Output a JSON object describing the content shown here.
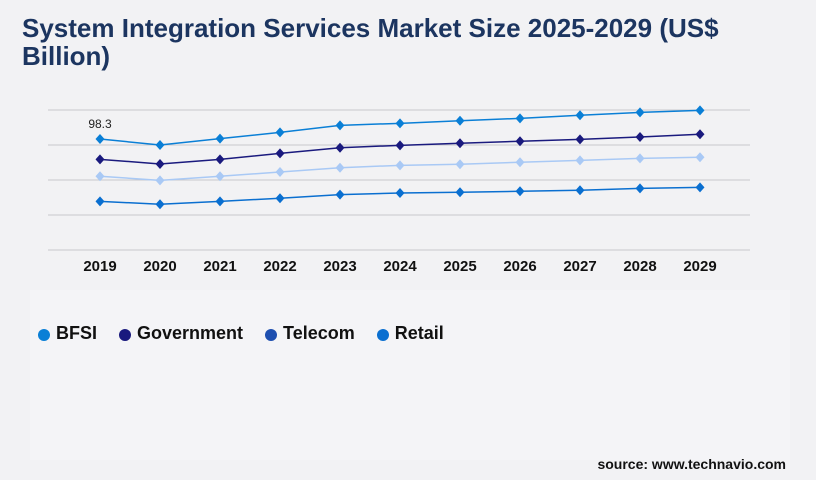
{
  "chart_data": {
    "type": "line",
    "title": "System Integration Services Market Size 2025-2029 (US$ Billion)",
    "categories": [
      "2019",
      "2020",
      "2021",
      "2022",
      "2023",
      "2024",
      "2025",
      "2026",
      "2027",
      "2028",
      "2029"
    ],
    "series": [
      {
        "name": "BFSI",
        "color": "#0a7fd6",
        "legend_color": "#0a7fd6",
        "values": [
          98.3,
          93.0,
          98.6,
          104.2,
          110.4,
          112.2,
          114.5,
          116.6,
          119.3,
          121.9,
          123.7
        ]
      },
      {
        "name": "Government",
        "color": "#1a1a7e",
        "legend_color": "#1a1a7e",
        "values": [
          80.3,
          76.2,
          80.3,
          85.6,
          90.6,
          92.7,
          94.5,
          96.3,
          98.0,
          100.1,
          102.5
        ]
      },
      {
        "name": "Telecom",
        "color": "#a9c9f5",
        "legend_color": "#1e4fb0",
        "values": [
          65.3,
          61.7,
          65.3,
          69.1,
          72.9,
          75.0,
          75.9,
          77.7,
          79.4,
          81.2,
          82.1
        ]
      },
      {
        "name": "Retail",
        "color": "#0a6fd0",
        "legend_color": "#0a6fd0",
        "values": [
          43.1,
          40.5,
          43.1,
          45.8,
          49.0,
          50.5,
          51.1,
          52.0,
          52.9,
          54.6,
          55.5
        ]
      }
    ],
    "data_labels": [
      {
        "series": "BFSI",
        "category": "2019",
        "text": "98.3"
      }
    ],
    "ylim": [
      0,
      124
    ],
    "grid": true,
    "legend_position": "bottom-left"
  },
  "source": "source: www.technavio.com"
}
